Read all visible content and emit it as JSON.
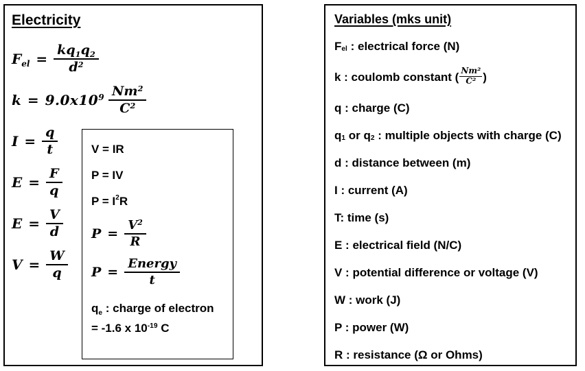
{
  "colors": {
    "background": "#ffffff",
    "border": "#000000",
    "text": "#000000"
  },
  "left_panel": {
    "title": "Electricity",
    "formulas": [
      {
        "eq": "=",
        "lhs": [
          {
            "t": "F"
          },
          {
            "t": "el",
            "v": "sub"
          }
        ],
        "num": [
          {
            "t": "kq"
          },
          {
            "t": "1",
            "v": "sub"
          },
          {
            "t": "q"
          },
          {
            "t": "2",
            "v": "sub"
          }
        ],
        "den": [
          {
            "t": "d"
          },
          {
            "t": "2",
            "v": "sup"
          }
        ]
      },
      {
        "eq": "=",
        "lhs": [
          {
            "t": "k"
          }
        ],
        "coef": [
          {
            "t": "9.0x10"
          },
          {
            "t": "9",
            "v": "sup"
          }
        ],
        "num": [
          {
            "t": "Nm"
          },
          {
            "t": "2",
            "v": "sup"
          }
        ],
        "den": [
          {
            "t": "C"
          },
          {
            "t": "2",
            "v": "sup"
          }
        ]
      },
      {
        "eq": "=",
        "lhs": [
          {
            "t": "I"
          }
        ],
        "num": [
          {
            "t": "q"
          }
        ],
        "den": [
          {
            "t": "t"
          }
        ]
      },
      {
        "eq": "=",
        "lhs": [
          {
            "t": "E"
          }
        ],
        "num": [
          {
            "t": "F"
          }
        ],
        "den": [
          {
            "t": "q"
          }
        ]
      },
      {
        "eq": "=",
        "lhs": [
          {
            "t": "E"
          }
        ],
        "num": [
          {
            "t": "V"
          }
        ],
        "den": [
          {
            "t": "d"
          }
        ]
      },
      {
        "eq": "=",
        "lhs": [
          {
            "t": "V"
          }
        ],
        "num": [
          {
            "t": "W"
          }
        ],
        "den": [
          {
            "t": "q"
          }
        ]
      }
    ],
    "inner_box": {
      "lines": [
        {
          "type": "plain",
          "segments": [
            {
              "t": "V = IR"
            }
          ]
        },
        {
          "type": "plain",
          "segments": [
            {
              "t": "P = IV"
            }
          ]
        },
        {
          "type": "plain",
          "segments": [
            {
              "t": "P = I"
            },
            {
              "t": "2",
              "v": "sup"
            },
            {
              "t": "R"
            }
          ]
        },
        {
          "type": "frac",
          "eq": "=",
          "lhs": [
            {
              "t": "P"
            }
          ],
          "num": [
            {
              "t": "V"
            },
            {
              "t": "2",
              "v": "sup"
            }
          ],
          "den": [
            {
              "t": "R"
            }
          ]
        },
        {
          "type": "frac",
          "eq": "=",
          "lhs": [
            {
              "t": "P"
            }
          ],
          "num": [
            {
              "t": "Energy"
            }
          ],
          "den": [
            {
              "t": "t"
            }
          ]
        },
        {
          "type": "note",
          "segments": [
            {
              "t": "q"
            },
            {
              "t": "e",
              "v": "sub"
            },
            {
              "t": " : charge of electron"
            }
          ]
        },
        {
          "type": "note",
          "segments": [
            {
              "t": "= -1.6 x 10"
            },
            {
              "t": "-19",
              "v": "sup"
            },
            {
              "t": " C"
            }
          ]
        }
      ]
    }
  },
  "right_panel": {
    "title": "Variables (mks unit)",
    "items": [
      {
        "segments": [
          {
            "t": "F"
          },
          {
            "t": "el",
            "v": "sub"
          },
          {
            "t": " : electrical force (N)"
          }
        ]
      },
      {
        "segments": [
          {
            "t": "k : coulomb constant ("
          },
          {
            "frac": {
              "num": "Nm²",
              "den": "C²"
            }
          },
          {
            "t": ")"
          }
        ]
      },
      {
        "segments": [
          {
            "t": "q : charge (C)"
          }
        ]
      },
      {
        "segments": [
          {
            "t": "q"
          },
          {
            "t": "1",
            "v": "sub"
          },
          {
            "t": " or q"
          },
          {
            "t": "2",
            "v": "sub"
          },
          {
            "t": " : multiple objects with charge (C)"
          }
        ]
      },
      {
        "segments": [
          {
            "t": "d : distance between (m)"
          }
        ]
      },
      {
        "segments": [
          {
            "t": "I : current (A)"
          }
        ]
      },
      {
        "segments": [
          {
            "t": "T: time (s)"
          }
        ]
      },
      {
        "segments": [
          {
            "t": "E : electrical field (N/C)"
          }
        ]
      },
      {
        "segments": [
          {
            "t": "V : potential difference or voltage (V)"
          }
        ]
      },
      {
        "segments": [
          {
            "t": "W : work (J)"
          }
        ]
      },
      {
        "segments": [
          {
            "t": "P : power (W)"
          }
        ]
      },
      {
        "segments": [
          {
            "t": "R : resistance (Ω or Ohms)"
          }
        ]
      }
    ]
  }
}
